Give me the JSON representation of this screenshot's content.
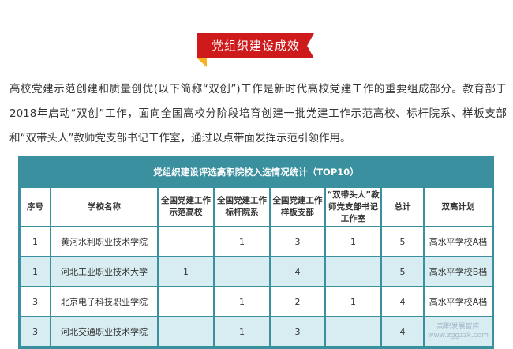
{
  "heading": "党组织建设成效",
  "paragraph": "高校党建示范创建和质量创优(以下简称“双创”)工作是新时代高校党建工作的重要组成部分。教育部于2018年启动“双创”工作，面向全国高校分阶段培育创建一批党建工作示范高校、标杆院系、样板支部和“双带头人”教师党支部书记工作室，通过以点带面发挥示范引领作用。",
  "table": {
    "title": "党组织建设评选高职院校入选情况统计（TOP10）",
    "headers": [
      "序号",
      "学校名称",
      "全国党建工作示范高校",
      "全国党建工作标杆院系",
      "全国党建工作样板支部",
      "“双带头人”教师党支部书记工作室",
      "总计",
      "双高计划"
    ],
    "rows": [
      [
        "1",
        "黄河水利职业技术学院",
        "",
        "1",
        "3",
        "1",
        "5",
        "高水平学校A档"
      ],
      [
        "1",
        "河北工业职业技术大学",
        "1",
        "",
        "4",
        "",
        "5",
        "高水平学校B档"
      ],
      [
        "3",
        "北京电子科技职业学院",
        "",
        "1",
        "2",
        "1",
        "4",
        "高水平学校A档"
      ],
      [
        "3",
        "河北交通职业技术学院",
        "",
        "1",
        "3",
        "",
        "4",
        ""
      ]
    ]
  },
  "watermark": "高职发展智库 www.zggzzk.com",
  "colors": {
    "ribbon": "#cf1a1b",
    "ribbon_fold": "#f5b321",
    "table_frame": "#3a909f",
    "row_alt": "#d8edf1"
  }
}
